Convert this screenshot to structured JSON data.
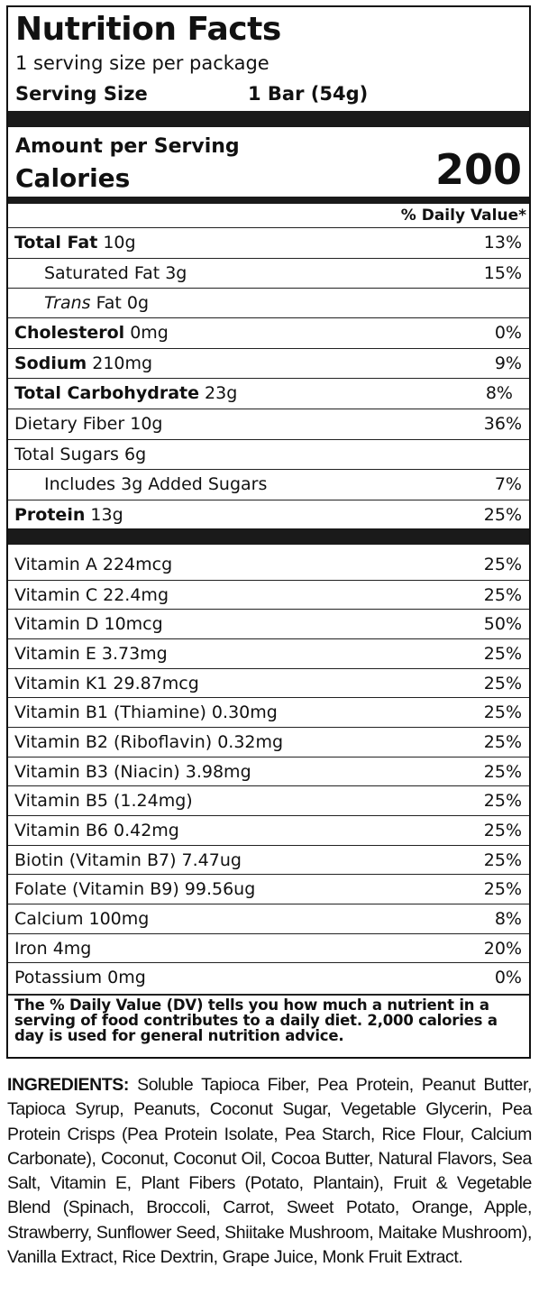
{
  "label": {
    "title": "Nutrition Facts",
    "servings": "1 serving size per package",
    "serving_size_label": "Serving Size",
    "serving_size_value": "1 Bar (54g)",
    "amount_per_serving": "Amount per Serving",
    "calories_label": "Calories",
    "calories_value": "200",
    "daily_value_header": "% Daily Value*"
  },
  "nutrients": [
    {
      "name": "Total Fat",
      "amount": "10g",
      "dv": "13%"
    },
    {
      "name": "Saturated Fat",
      "amount": "3g",
      "dv": "15%"
    },
    {
      "name": "Trans",
      "amount": "Fat 0g",
      "dv": ""
    },
    {
      "name": "Cholesterol",
      "amount": "0mg",
      "dv": "0%"
    },
    {
      "name": "Sodium",
      "amount": "210mg",
      "dv": "9%"
    },
    {
      "name": "Total Carbohydrate",
      "amount": "23g",
      "dv": "8%"
    },
    {
      "name": "Dietary Fiber",
      "amount": "10g",
      "dv": "36%"
    },
    {
      "name": "Total Sugars",
      "amount": "6g",
      "dv": ""
    },
    {
      "name": "Includes 3g Added Sugars",
      "amount": "",
      "dv": "7%"
    },
    {
      "name": "Protein",
      "amount": "13g",
      "dv": "25%"
    }
  ],
  "vitamins": [
    {
      "text": "Vitamin A 224mcg",
      "dv": "25%"
    },
    {
      "text": "Vitamin C 22.4mg",
      "dv": "25%"
    },
    {
      "text": "Vitamin D 10mcg",
      "dv": "50%"
    },
    {
      "text": "Vitamin E 3.73mg",
      "dv": "25%"
    },
    {
      "text": "Vitamin K1 29.87mcg",
      "dv": "25%"
    },
    {
      "text": "Vitamin B1 (Thiamine) 0.30mg",
      "dv": "25%"
    },
    {
      "text": "Vitamin B2 (Riboflavin) 0.32mg",
      "dv": "25%"
    },
    {
      "text": "Vitamin B3 (Niacin) 3.98mg",
      "dv": "25%"
    },
    {
      "text": "Vitamin B5 (1.24mg)",
      "dv": "25%"
    },
    {
      "text": "Vitamin B6 0.42mg",
      "dv": "25%"
    },
    {
      "text": "Biotin (Vitamin B7) 7.47ug",
      "dv": "25%"
    },
    {
      "text": "Folate (Vitamin B9) 99.56ug",
      "dv": "25%"
    },
    {
      "text": "Calcium 100mg",
      "dv": "8%"
    },
    {
      "text": "Iron 4mg",
      "dv": "20%"
    },
    {
      "text": "Potassium 0mg",
      "dv": "0%"
    }
  ],
  "footnote": "The % Daily Value (DV) tells you how much a nutrient in a serving of food contributes to a daily diet. 2,000 calories a day is used for general nutrition advice.",
  "ingredients": {
    "label": "INGREDIENTS:",
    "text": "Soluble Tapioca Fiber, Pea Protein, Peanut Butter, Tapioca Syrup, Peanuts, Coconut Sugar, Vegetable Glycerin, Pea Protein Crisps (Pea Protein Isolate, Pea Starch, Rice Flour, Calcium Carbonate), Coconut, Coconut Oil, Cocoa Butter, Natural Flavors, Sea Salt, Vitamin E, Plant Fibers (Potato, Plantain), Fruit & Vegetable Blend (Spinach, Broccoli, Carrot, Sweet Potato, Orange, Apple, Strawberry, Sunflower Seed, Shiitake Mushroom, Maitake Mushroom), Vanilla Extract, Rice Dextrin, Grape Juice, Monk Fruit Extract."
  }
}
